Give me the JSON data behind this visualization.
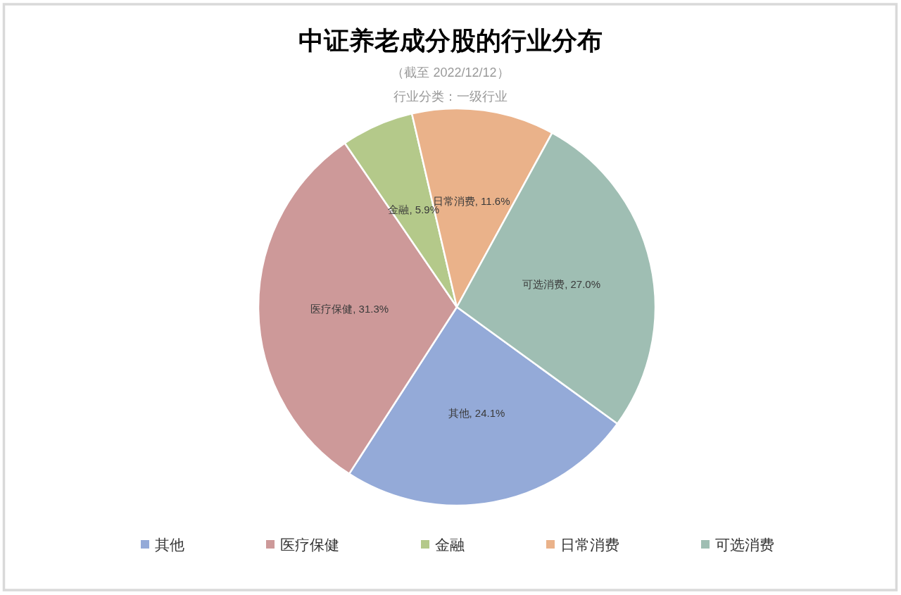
{
  "chart_data": {
    "type": "pie",
    "title": "中证养老成分股的行业分布",
    "subtitle": "（截至 2022/12/12）",
    "annotations": [
      "行业分类：一级行业"
    ],
    "categories": [
      "其他",
      "医疗保健",
      "金融",
      "日常消费",
      "可选消费"
    ],
    "values": [
      24.1,
      31.3,
      5.9,
      11.6,
      27.0
    ],
    "value_labels": [
      "其他, 24.1%",
      "医疗保健, 31.3%",
      "金融, 5.9%",
      "日常消费, 11.6%",
      "可选消费, 27.0%"
    ],
    "colors": [
      "#94aad8",
      "#cd9999",
      "#b4c98a",
      "#eab28a",
      "#9fbeb3"
    ],
    "legend": "bottom"
  }
}
